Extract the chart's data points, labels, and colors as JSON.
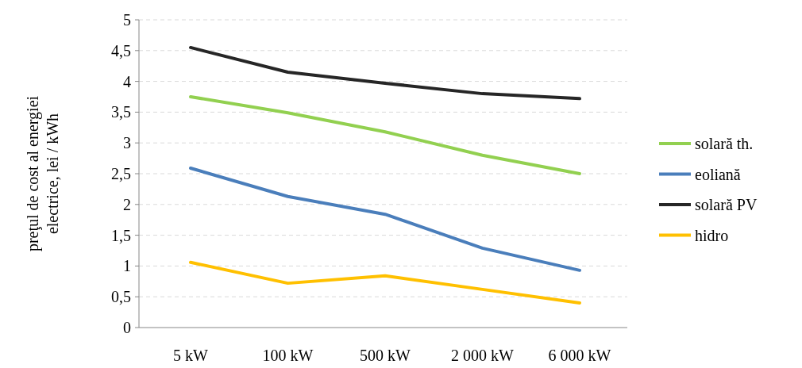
{
  "chart_data": {
    "type": "line",
    "ylabel": "preţul de cost al energiei electrice, lei / kWh",
    "categories": [
      "5 kW",
      "100 kW",
      "500 kW",
      "2 000 kW",
      "6 000 kW"
    ],
    "series": [
      {
        "name": "solară th.",
        "color": "#92d050",
        "values": [
          3.75,
          3.49,
          3.18,
          2.8,
          2.5
        ]
      },
      {
        "name": "eoliană",
        "color": "#4a7ebb",
        "values": [
          2.59,
          2.13,
          1.84,
          1.29,
          0.93
        ]
      },
      {
        "name": "solară PV",
        "color": "#262626",
        "values": [
          4.55,
          4.15,
          3.97,
          3.8,
          3.72
        ]
      },
      {
        "name": "hidro",
        "color": "#ffc000",
        "values": [
          1.06,
          0.72,
          0.84,
          0.62,
          0.4
        ]
      }
    ],
    "ylim": [
      0,
      5
    ],
    "yticks": [
      0,
      {
        "value": 0.5,
        "label": "0,5"
      },
      1,
      {
        "value": 1.5,
        "label": "1,5"
      },
      2,
      {
        "value": 2.5,
        "label": "2,5"
      },
      3,
      {
        "value": 3.5,
        "label": "3,5"
      },
      4,
      {
        "value": 4.5,
        "label": "4,5"
      },
      5
    ],
    "grid": "y",
    "legend": "right",
    "line_style": "solid"
  }
}
